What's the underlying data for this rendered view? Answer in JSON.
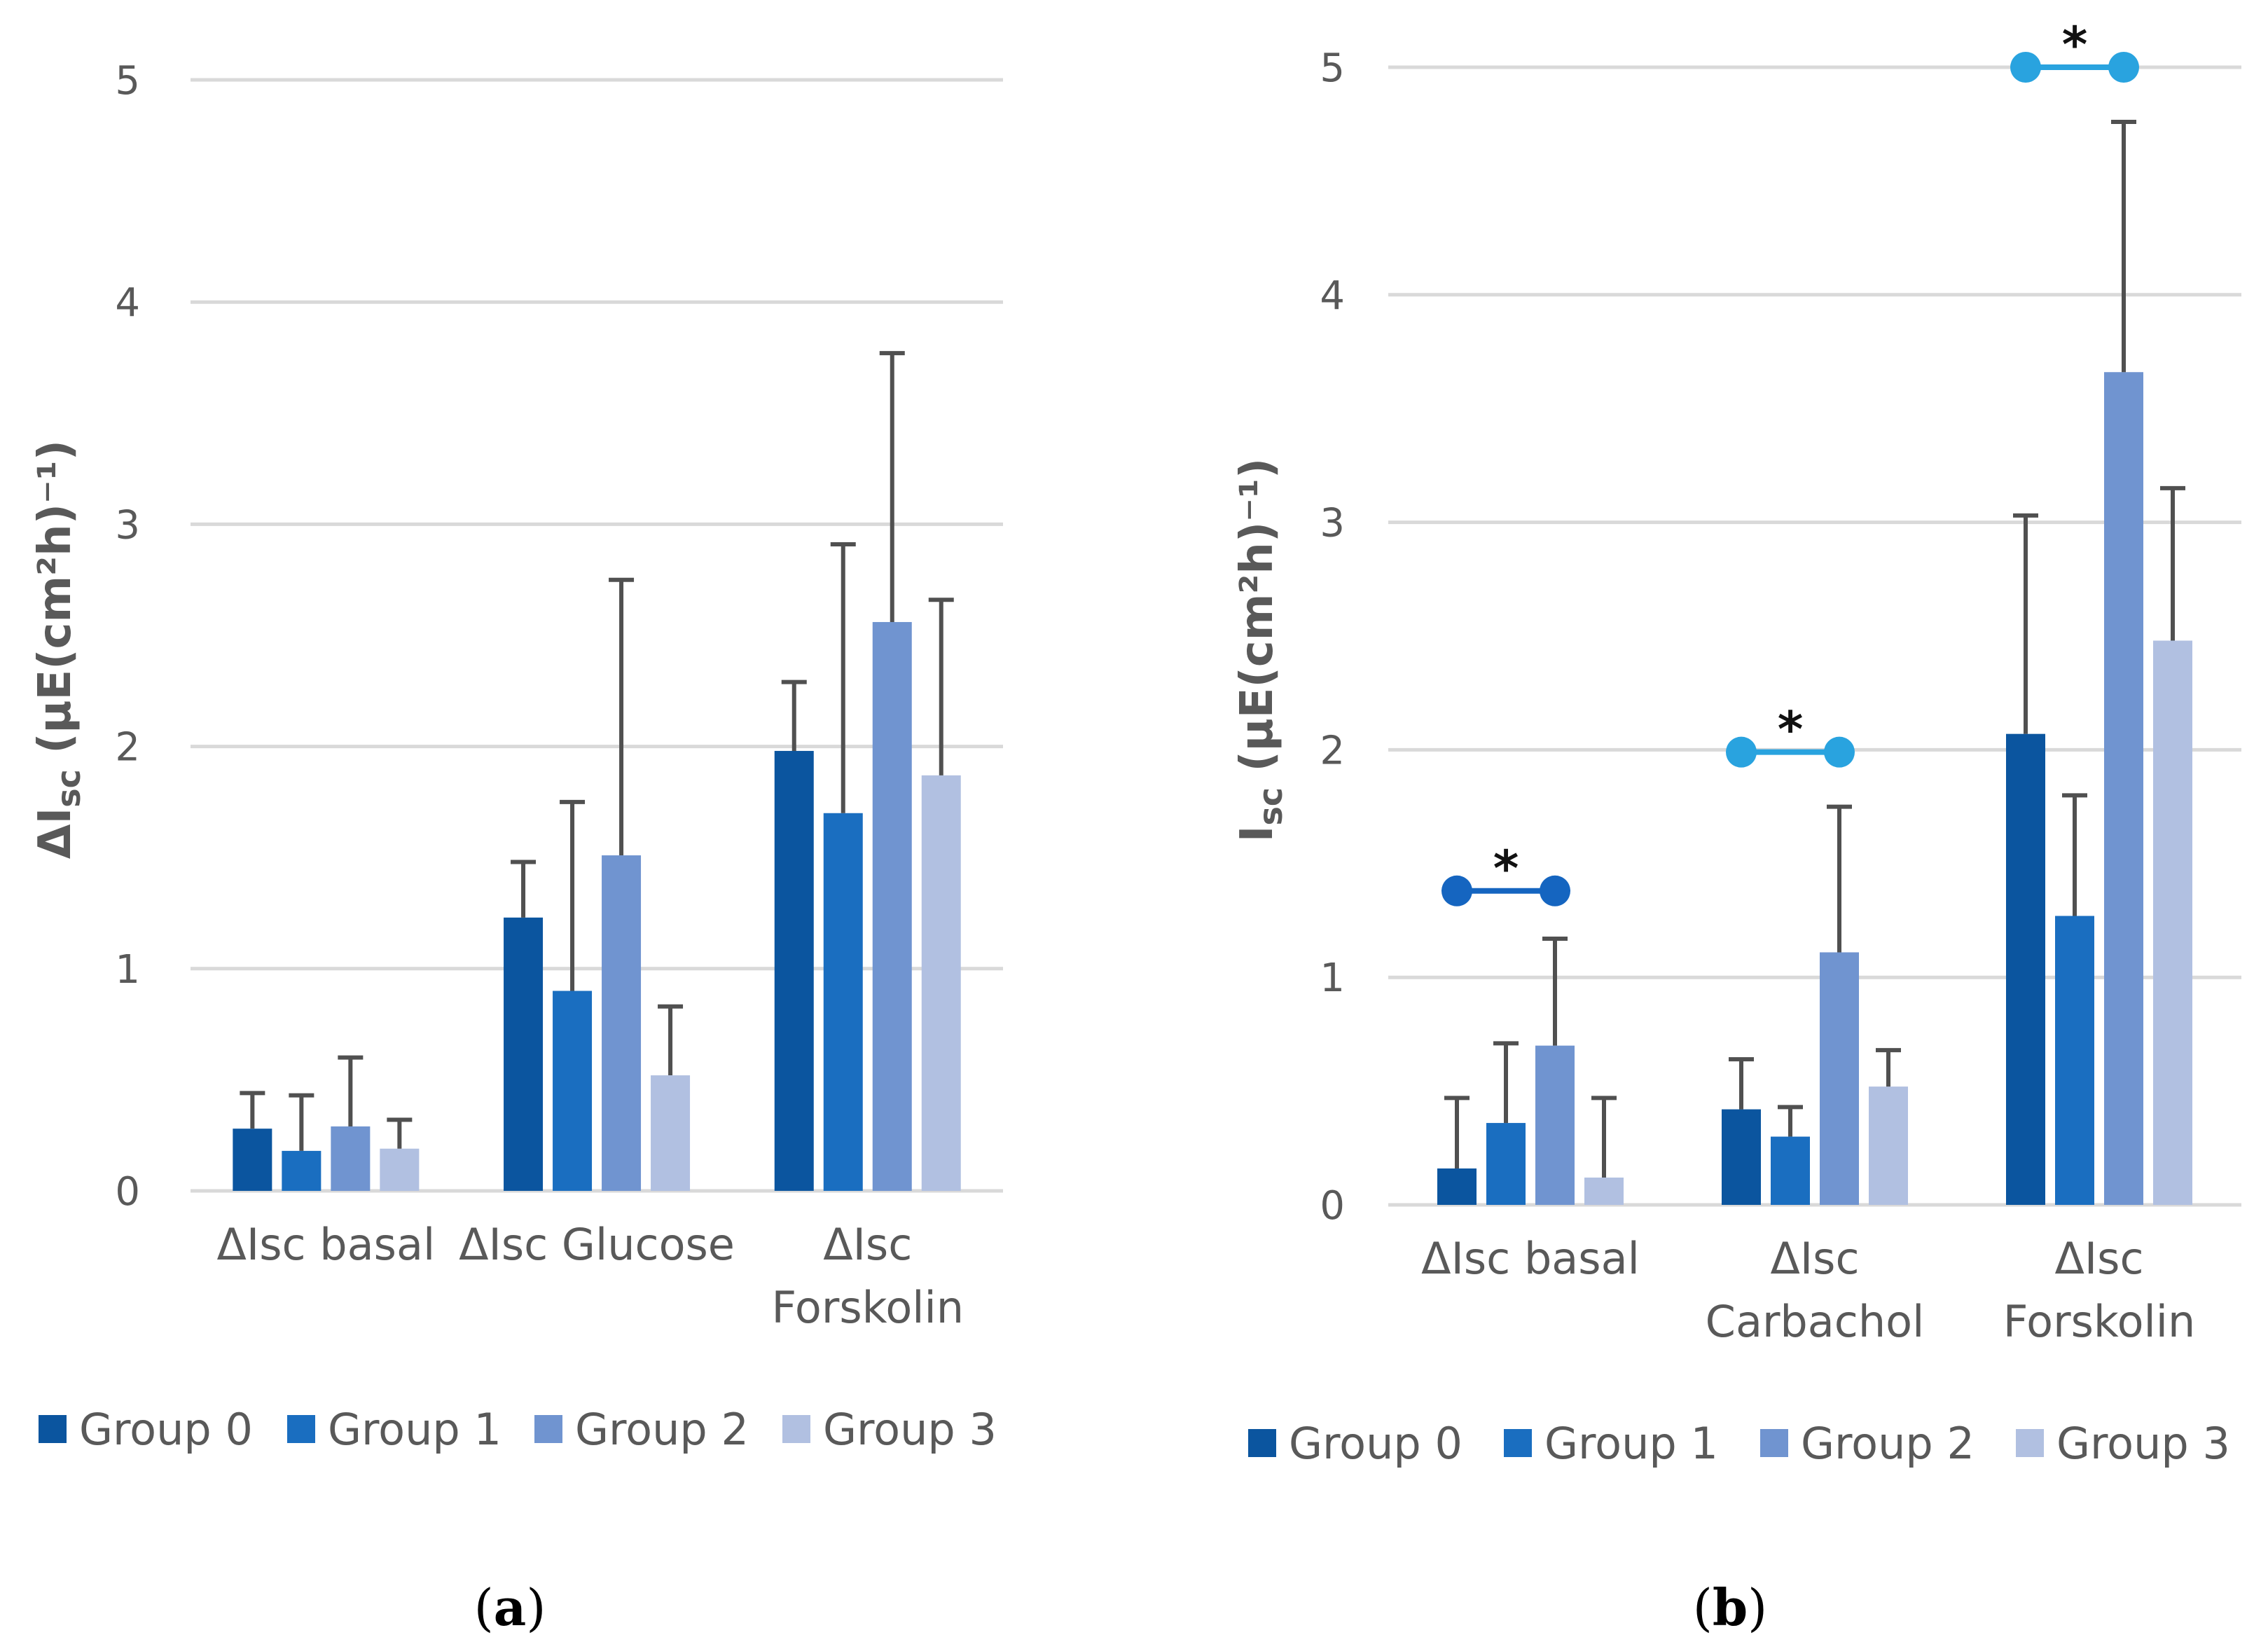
{
  "figure": {
    "panel_labels": [
      "(a)",
      "(b)"
    ],
    "significance_marker": "*"
  },
  "colors": {
    "group0": "#0b559f",
    "group1": "#1a6ec0",
    "group2": "#7094d0",
    "group3": "#b1c0e1",
    "grid": "#d9d9d9",
    "error": "#505050",
    "sig_basal": "#1565c0",
    "sig_other": "#29a3df"
  },
  "chart_data": [
    {
      "id": "a",
      "type": "bar",
      "panel_label": "(a)",
      "ylabel_main": "ΔI",
      "ylabel_sub": "sc",
      "ylabel_rest": " (µE(cm²h)⁻¹)",
      "ylim": [
        0,
        5
      ],
      "yticks": [
        "0",
        "1",
        "2",
        "3",
        "4",
        "5"
      ],
      "grid": true,
      "legend_position": "bottom",
      "categories": [
        [
          "ΔIsc basal"
        ],
        [
          "ΔIsc Glucose"
        ],
        [
          "ΔIsc",
          "Forskolin"
        ]
      ],
      "series": [
        {
          "name": "Group 0",
          "values": [
            0.28,
            1.23,
            1.98
          ],
          "errors": [
            0.16,
            0.25,
            0.31
          ]
        },
        {
          "name": "Group 1",
          "values": [
            0.18,
            0.9,
            1.7
          ],
          "errors": [
            0.25,
            0.85,
            1.21
          ]
        },
        {
          "name": "Group 2",
          "values": [
            0.29,
            1.51,
            2.56
          ],
          "errors": [
            0.31,
            1.24,
            1.21
          ]
        },
        {
          "name": "Group 3",
          "values": [
            0.19,
            0.52,
            1.87
          ],
          "errors": [
            0.13,
            0.31,
            0.79
          ]
        }
      ],
      "significance": []
    },
    {
      "id": "b",
      "type": "bar",
      "panel_label": "(b)",
      "ylabel_main": "I",
      "ylabel_sub": "sc",
      "ylabel_rest": " (µE(cm²h)⁻¹)",
      "ylim": [
        0,
        5
      ],
      "yticks": [
        "0",
        "1",
        "2",
        "3",
        "4",
        "5"
      ],
      "grid": true,
      "legend_position": "bottom",
      "categories": [
        [
          "ΔIsc basal"
        ],
        [
          "ΔIsc",
          "Carbachol"
        ],
        [
          "ΔIsc",
          "Forskolin"
        ]
      ],
      "series": [
        {
          "name": "Group 0",
          "values": [
            0.16,
            0.42,
            2.07
          ],
          "errors": [
            0.31,
            0.22,
            0.96
          ]
        },
        {
          "name": "Group 1",
          "values": [
            0.36,
            0.3,
            1.27
          ],
          "errors": [
            0.35,
            0.13,
            0.53
          ]
        },
        {
          "name": "Group 2",
          "values": [
            0.7,
            1.11,
            3.66
          ],
          "errors": [
            0.47,
            0.64,
            1.1
          ]
        },
        {
          "name": "Group 3",
          "values": [
            0.12,
            0.52,
            2.48
          ],
          "errors": [
            0.35,
            0.16,
            0.67
          ]
        }
      ],
      "significance": [
        {
          "category": 0,
          "y": 1.38,
          "label": "*",
          "color_key": "sig_basal"
        },
        {
          "category": 1,
          "y": 1.99,
          "label": "*",
          "color_key": "sig_other"
        },
        {
          "category": 2,
          "y": 5.0,
          "label": "*",
          "color_key": "sig_other"
        }
      ]
    }
  ]
}
